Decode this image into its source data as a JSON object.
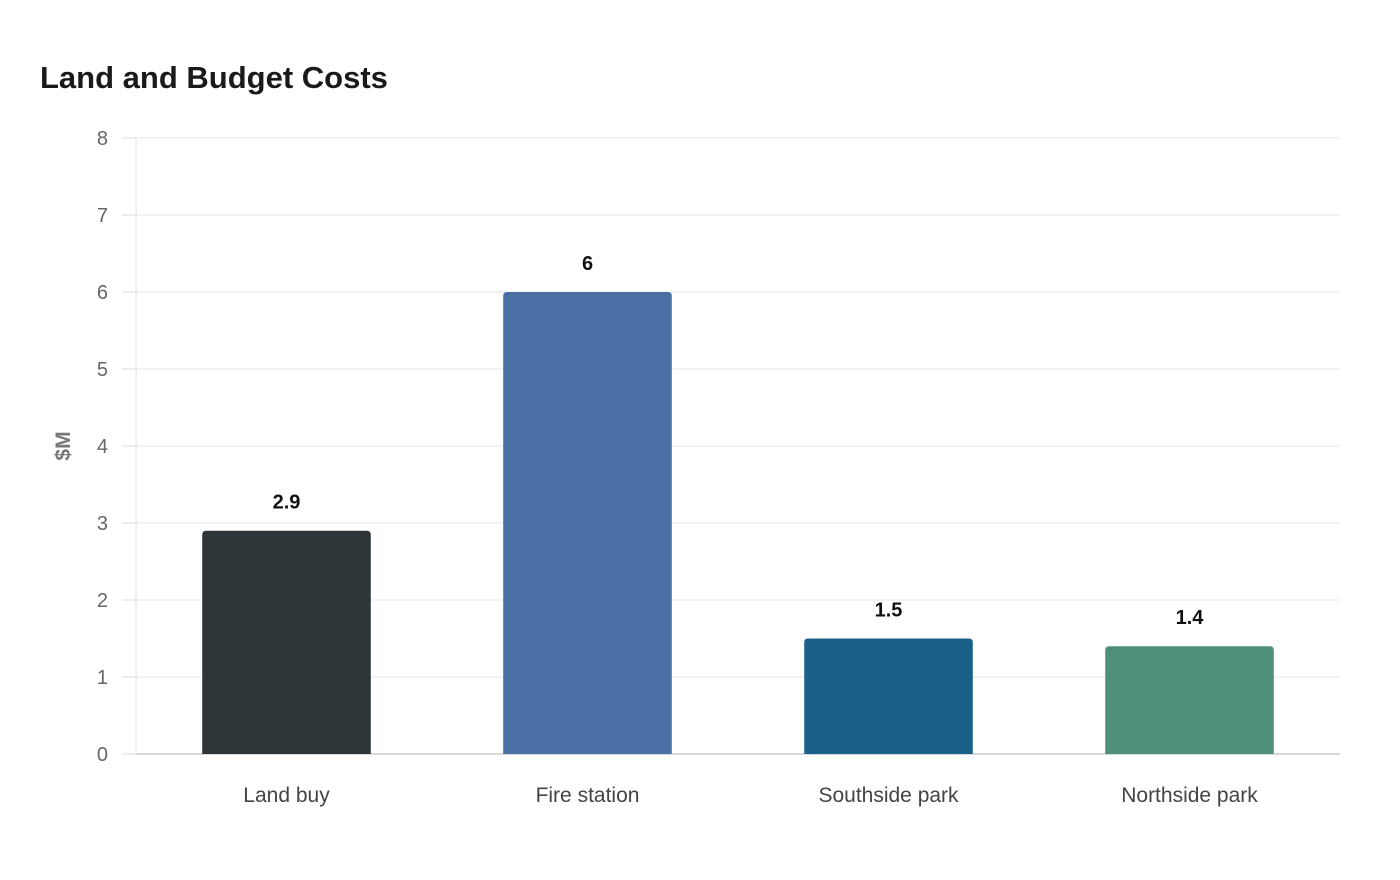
{
  "chart_data": {
    "type": "bar",
    "title": "Land and Budget Costs",
    "xlabel": "",
    "ylabel": "$M",
    "categories": [
      "Land buy",
      "Fire station",
      "Southside park",
      "Northside park"
    ],
    "values": [
      2.9,
      6,
      1.5,
      1.4
    ],
    "value_labels": [
      "2.9",
      "6",
      "1.5",
      "1.4"
    ],
    "colors": [
      "#2e3538",
      "#4a6fa5",
      "#1a6189",
      "#4e8f7c"
    ],
    "ylim": [
      0,
      8
    ],
    "yticks": [
      0,
      1,
      2,
      3,
      4,
      5,
      6,
      7,
      8
    ],
    "grid": true,
    "legend": "none"
  }
}
